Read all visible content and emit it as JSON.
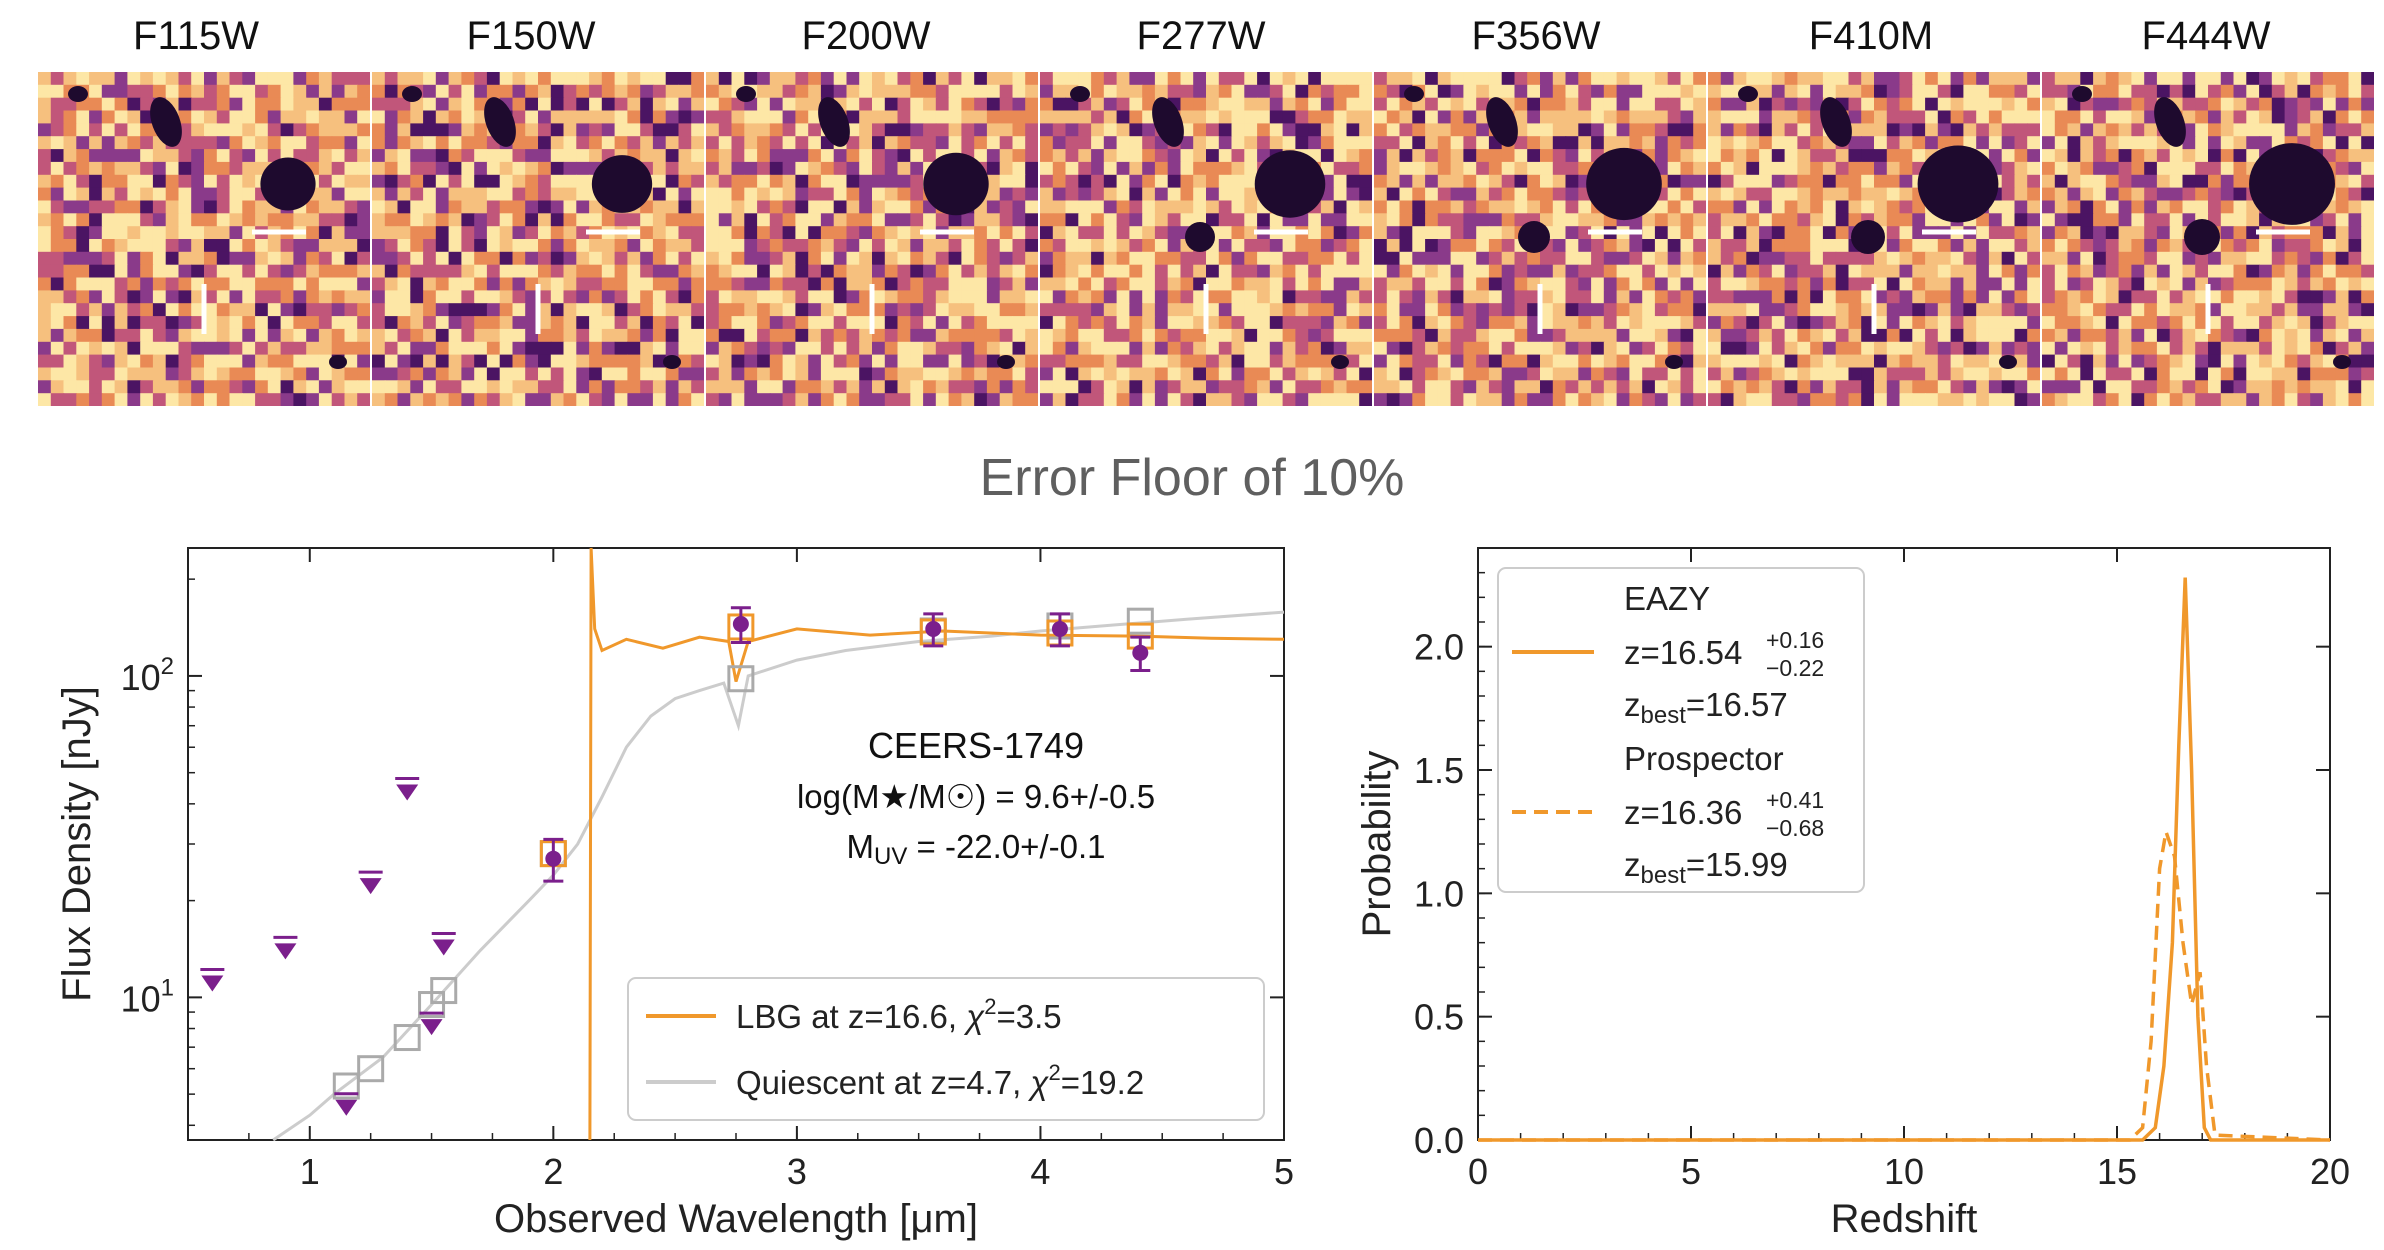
{
  "image_strip": {
    "bands": [
      "F115W",
      "F150W",
      "F200W",
      "F277W",
      "F356W",
      "F410M",
      "F444W"
    ],
    "colormap": [
      "#1e0a2e",
      "#4b1463",
      "#8a3a8a",
      "#c1567a",
      "#e98a55",
      "#f6c07e",
      "#fde7a6"
    ]
  },
  "main_title": "Error Floor of 10%",
  "chart_data": [
    {
      "type": "scatter",
      "panel": "sed",
      "xlabel": "Observed Wavelength [μm]",
      "ylabel": "Flux Density [nJy]",
      "xlim": [
        0.5,
        5
      ],
      "ylim": [
        3.6,
        250
      ],
      "yscale": "log",
      "xticks": [
        "1",
        "2",
        "3",
        "4",
        "5"
      ],
      "yticks": [
        {
          "value": 10,
          "base": "10",
          "exp": "1"
        },
        {
          "value": 100,
          "base": "10",
          "exp": "2"
        }
      ],
      "annotation": {
        "name": "CEERS-1749",
        "mass": "log(M★/M☉) = 9.6+/-0.5",
        "muv_label": "M",
        "muv_sub": "UV",
        "muv_value": " = -22.0+/-0.1"
      },
      "legend": {
        "position": "lower-right",
        "entries": [
          {
            "label": "LBG at z=16.6, ",
            "chi_label": "χ",
            "chi_sup": "2",
            "chi_value": "=3.5",
            "color": "#f0982b"
          },
          {
            "label": "Quiescent at z=4.7, ",
            "chi_label": "χ",
            "chi_sup": "2",
            "chi_value": "=19.2",
            "color": "#cccccc"
          }
        ]
      },
      "detections": [
        {
          "x": 2.0,
          "y": 27,
          "err": 4
        },
        {
          "x": 2.77,
          "y": 145,
          "err": 18
        },
        {
          "x": 3.56,
          "y": 140,
          "err": 16
        },
        {
          "x": 4.08,
          "y": 140,
          "err": 16
        },
        {
          "x": 4.41,
          "y": 118,
          "err": 14
        }
      ],
      "upper_limits": [
        {
          "x": 0.6,
          "y": 11.2
        },
        {
          "x": 0.9,
          "y": 14.1
        },
        {
          "x": 1.15,
          "y": 4.6
        },
        {
          "x": 1.25,
          "y": 22.5
        },
        {
          "x": 1.4,
          "y": 44
        },
        {
          "x": 1.5,
          "y": 8.2
        },
        {
          "x": 1.55,
          "y": 14.5
        }
      ],
      "quiescent_model_photometry": [
        {
          "x": 1.15,
          "y": 5.3
        },
        {
          "x": 1.25,
          "y": 6.0
        },
        {
          "x": 1.4,
          "y": 7.5
        },
        {
          "x": 1.5,
          "y": 9.5
        },
        {
          "x": 1.55,
          "y": 10.5
        },
        {
          "x": 2.0,
          "y": 28
        },
        {
          "x": 2.77,
          "y": 98
        },
        {
          "x": 3.56,
          "y": 138
        },
        {
          "x": 4.08,
          "y": 143
        },
        {
          "x": 4.41,
          "y": 148
        }
      ],
      "lbg_model_photometry": [
        {
          "x": 2.0,
          "y": 28
        },
        {
          "x": 2.77,
          "y": 142
        },
        {
          "x": 3.56,
          "y": 137
        },
        {
          "x": 4.08,
          "y": 136
        },
        {
          "x": 4.41,
          "y": 133
        }
      ],
      "lbg_spectrum": [
        [
          2.15,
          3.6
        ],
        [
          2.155,
          280
        ],
        [
          2.17,
          140
        ],
        [
          2.2,
          120
        ],
        [
          2.3,
          130
        ],
        [
          2.45,
          122
        ],
        [
          2.6,
          132
        ],
        [
          2.72,
          128
        ],
        [
          2.75,
          96
        ],
        [
          2.8,
          128
        ],
        [
          3.0,
          140
        ],
        [
          3.3,
          134
        ],
        [
          3.6,
          138
        ],
        [
          4.0,
          134
        ],
        [
          4.4,
          133
        ],
        [
          4.7,
          131
        ],
        [
          5.0,
          130
        ]
      ],
      "quiescent_spectrum": [
        [
          0.85,
          3.6
        ],
        [
          1.0,
          4.3
        ],
        [
          1.1,
          5.0
        ],
        [
          1.3,
          6.5
        ],
        [
          1.5,
          9.5
        ],
        [
          1.7,
          14
        ],
        [
          1.9,
          20
        ],
        [
          2.0,
          24
        ],
        [
          2.1,
          30
        ],
        [
          2.2,
          42
        ],
        [
          2.3,
          60
        ],
        [
          2.4,
          75
        ],
        [
          2.5,
          85
        ],
        [
          2.6,
          90
        ],
        [
          2.7,
          95
        ],
        [
          2.76,
          70
        ],
        [
          2.8,
          100
        ],
        [
          3.0,
          112
        ],
        [
          3.2,
          120
        ],
        [
          3.5,
          128
        ],
        [
          3.8,
          133
        ],
        [
          4.0,
          138
        ],
        [
          4.3,
          144
        ],
        [
          4.6,
          150
        ],
        [
          5.0,
          158
        ]
      ]
    },
    {
      "type": "line",
      "panel": "pz",
      "xlabel": "Redshift",
      "ylabel": "Probability",
      "xlim": [
        0,
        20
      ],
      "ylim": [
        0,
        2.4
      ],
      "xticks": [
        "0",
        "5",
        "10",
        "15",
        "20"
      ],
      "yticks": [
        "0.0",
        "0.5",
        "1.0",
        "1.5",
        "2.0"
      ],
      "legend": {
        "position": "top-left",
        "entries": [
          {
            "name": "EAZY",
            "z": "z=16.54",
            "z_plus": "+0.16",
            "z_minus": "−0.22",
            "zbest_label": "z",
            "zbest_sub": "best",
            "zbest_value": "=16.57",
            "style": "solid",
            "color": "#f0982b"
          },
          {
            "name": "Prospector",
            "z": "z=16.36",
            "z_plus": "+0.41",
            "z_minus": "−0.68",
            "zbest_label": "z",
            "zbest_sub": "best",
            "zbest_value": "=15.99",
            "style": "dashed",
            "color": "#f0982b"
          }
        ]
      },
      "series": [
        {
          "name": "EAZY",
          "style": "solid",
          "points": [
            [
              0,
              0
            ],
            [
              15.6,
              0
            ],
            [
              15.9,
              0.05
            ],
            [
              16.1,
              0.3
            ],
            [
              16.3,
              0.8
            ],
            [
              16.45,
              1.6
            ],
            [
              16.6,
              2.28
            ],
            [
              16.75,
              1.5
            ],
            [
              16.9,
              0.5
            ],
            [
              17.05,
              0.05
            ],
            [
              17.2,
              0
            ],
            [
              20,
              0
            ]
          ]
        },
        {
          "name": "Prospector",
          "style": "dashed",
          "points": [
            [
              0,
              0
            ],
            [
              15.3,
              0
            ],
            [
              15.6,
              0.05
            ],
            [
              15.8,
              0.4
            ],
            [
              16.0,
              1.1
            ],
            [
              16.15,
              1.25
            ],
            [
              16.35,
              1.15
            ],
            [
              16.55,
              0.8
            ],
            [
              16.75,
              0.55
            ],
            [
              16.95,
              0.68
            ],
            [
              17.1,
              0.3
            ],
            [
              17.3,
              0.02
            ],
            [
              20,
              0
            ]
          ]
        }
      ]
    }
  ]
}
